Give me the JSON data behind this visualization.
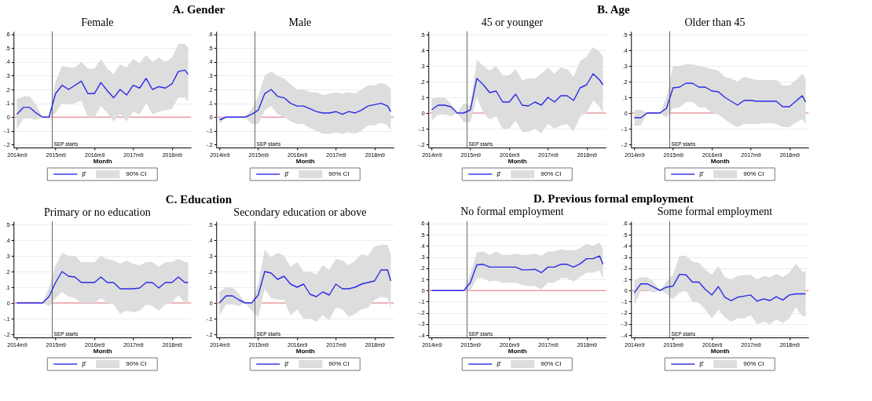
{
  "chart_data": [
    {
      "type": "line",
      "title": "A. Gender",
      "subtitle": "Female",
      "xlabel": "Month",
      "grid": "y",
      "legend": "bottom",
      "marker": "none",
      "x": [
        "2014-09",
        "2014-11",
        "2015-01",
        "2015-03",
        "2015-05",
        "2015-07",
        "2015-09",
        "2015-11",
        "2016-01",
        "2016-03",
        "2016-05",
        "2016-07",
        "2016-09",
        "2016-11",
        "2017-01",
        "2017-03",
        "2017-05",
        "2017-07",
        "2017-09",
        "2017-11",
        "2018-01",
        "2018-03",
        "2018-05",
        "2018-07",
        "2018-09",
        "2018-11",
        "2019-01",
        "2019-02"
      ],
      "xlim": [
        "2014-08",
        "2019-03"
      ],
      "xticks": [
        {
          "value": "2014-09",
          "label": "2014m9"
        },
        {
          "value": "2015-09",
          "label": "2015m9"
        },
        {
          "value": "2016-09",
          "label": "2016m9"
        },
        {
          "value": "2017-09",
          "label": "2017m9"
        },
        {
          "value": "2018-09",
          "label": "2018m9"
        }
      ],
      "ylim": [
        -0.22,
        0.62
      ],
      "yticks": [
        {
          "value": -0.2,
          "label": "-.2"
        },
        {
          "value": -0.1,
          "label": "-.1"
        },
        0,
        {
          "value": 0.1,
          "label": ".1"
        },
        {
          "value": 0.2,
          "label": ".2"
        },
        {
          "value": 0.3,
          "label": ".3"
        },
        {
          "value": 0.4,
          "label": ".4"
        },
        {
          "value": 0.5,
          "label": ".5"
        },
        {
          "value": 0.6,
          "label": ".6"
        }
      ],
      "series": [
        {
          "name": "β̂",
          "color": "#2a2ae8",
          "values": [
            0.02,
            0.07,
            0.07,
            0.03,
            0,
            0,
            0.17,
            0.23,
            0.2,
            0.23,
            0.26,
            0.17,
            0.17,
            0.25,
            0.19,
            0.14,
            0.2,
            0.16,
            0.23,
            0.21,
            0.28,
            0.2,
            0.22,
            0.21,
            0.24,
            0.33,
            0.34,
            0.31
          ],
          "lower": [
            -0.09,
            -0.01,
            -0.01,
            -0.02,
            0,
            0,
            0.03,
            0.1,
            0.09,
            0.1,
            0.12,
            0,
            0,
            0.08,
            0.03,
            -0.03,
            0.02,
            -0.03,
            0.04,
            0.02,
            0.1,
            0.02,
            0.04,
            0.05,
            0.06,
            0.14,
            0.14,
            0.11
          ],
          "upper": [
            0.13,
            0.15,
            0.15,
            0.09,
            0,
            0,
            0.26,
            0.37,
            0.36,
            0.36,
            0.4,
            0.35,
            0.35,
            0.42,
            0.35,
            0.31,
            0.38,
            0.36,
            0.42,
            0.39,
            0.45,
            0.4,
            0.43,
            0.4,
            0.43,
            0.53,
            0.53,
            0.5
          ]
        }
      ],
      "ref_lines": [
        {
          "axis": "y",
          "value": 0,
          "color": "#e8707a"
        },
        {
          "axis": "x",
          "value": "2015-08",
          "label": "SEP starts",
          "color": "#666666"
        }
      ],
      "annotations": [
        "90% CI"
      ]
    },
    {
      "type": "line",
      "subtitle": "Male",
      "xlabel": "Month",
      "grid": "y",
      "legend": "bottom",
      "marker": "none",
      "x": [
        "2014-09",
        "2014-11",
        "2015-01",
        "2015-03",
        "2015-05",
        "2015-07",
        "2015-09",
        "2015-11",
        "2016-01",
        "2016-03",
        "2016-05",
        "2016-07",
        "2016-09",
        "2016-11",
        "2017-01",
        "2017-03",
        "2017-05",
        "2017-07",
        "2017-09",
        "2017-11",
        "2018-01",
        "2018-03",
        "2018-05",
        "2018-07",
        "2018-09",
        "2018-11",
        "2019-01",
        "2019-02"
      ],
      "xlim": [
        "2014-08",
        "2019-03"
      ],
      "xticks": [
        {
          "value": "2014-09",
          "label": "2014m9"
        },
        {
          "value": "2015-09",
          "label": "2015m9"
        },
        {
          "value": "2016-09",
          "label": "2016m9"
        },
        {
          "value": "2017-09",
          "label": "2017m9"
        },
        {
          "value": "2018-09",
          "label": "2018m9"
        }
      ],
      "ylim": [
        -0.22,
        0.62
      ],
      "yticks": [
        {
          "value": -0.2,
          "label": "-.2"
        },
        {
          "value": -0.1,
          "label": "-.1"
        },
        0,
        {
          "value": 0.1,
          "label": ".1"
        },
        {
          "value": 0.2,
          "label": ".2"
        },
        {
          "value": 0.3,
          "label": ".3"
        },
        {
          "value": 0.4,
          "label": ".4"
        },
        {
          "value": 0.5,
          "label": ".5"
        },
        {
          "value": 0.6,
          "label": ".6"
        }
      ],
      "series": [
        {
          "name": "β̂",
          "color": "#2a2ae8",
          "values": [
            -0.02,
            0,
            0,
            0,
            0,
            0.02,
            0.05,
            0.17,
            0.2,
            0.15,
            0.14,
            0.1,
            0.08,
            0.08,
            0.06,
            0.04,
            0.03,
            0.03,
            0.04,
            0.02,
            0.04,
            0.03,
            0.05,
            0.08,
            0.09,
            0.1,
            0.08,
            0.04
          ],
          "lower": [
            -0.05,
            0,
            0,
            0,
            0,
            -0.05,
            -0.05,
            0.05,
            0.08,
            0.02,
            0,
            -0.03,
            -0.05,
            -0.05,
            -0.08,
            -0.1,
            -0.12,
            -0.12,
            -0.11,
            -0.12,
            -0.11,
            -0.12,
            -0.1,
            -0.06,
            -0.06,
            -0.04,
            -0.06,
            -0.1
          ],
          "upper": [
            0,
            0,
            0,
            0,
            0,
            0.06,
            0.15,
            0.3,
            0.33,
            0.3,
            0.28,
            0.24,
            0.2,
            0.2,
            0.18,
            0.18,
            0.16,
            0.17,
            0.18,
            0.17,
            0.18,
            0.17,
            0.2,
            0.23,
            0.23,
            0.25,
            0.23,
            0.2
          ]
        }
      ],
      "ref_lines": [
        {
          "axis": "y",
          "value": 0,
          "color": "#e8707a"
        },
        {
          "axis": "x",
          "value": "2015-08",
          "label": "SEP starts",
          "color": "#666666"
        }
      ],
      "annotations": [
        "90% CI"
      ]
    },
    {
      "type": "line",
      "title": "B. Age",
      "subtitle": "45 or younger",
      "xlabel": "Month",
      "grid": "y",
      "legend": "bottom",
      "marker": "none",
      "x": [
        "2014-09",
        "2014-11",
        "2015-01",
        "2015-03",
        "2015-05",
        "2015-07",
        "2015-09",
        "2015-11",
        "2016-01",
        "2016-03",
        "2016-05",
        "2016-07",
        "2016-09",
        "2016-11",
        "2017-01",
        "2017-03",
        "2017-05",
        "2017-07",
        "2017-09",
        "2017-11",
        "2018-01",
        "2018-03",
        "2018-05",
        "2018-07",
        "2018-09",
        "2018-11",
        "2019-01",
        "2019-02"
      ],
      "xlim": [
        "2014-08",
        "2019-03"
      ],
      "xticks": [
        {
          "value": "2014-09",
          "label": "2014m9"
        },
        {
          "value": "2015-09",
          "label": "2015m9"
        },
        {
          "value": "2016-09",
          "label": "2016m9"
        },
        {
          "value": "2017-09",
          "label": "2017m9"
        },
        {
          "value": "2018-09",
          "label": "2018m9"
        }
      ],
      "ylim": [
        -0.22,
        0.52
      ],
      "yticks": [
        {
          "value": -0.2,
          "label": "-.2"
        },
        {
          "value": -0.1,
          "label": "-.1"
        },
        0,
        {
          "value": 0.1,
          "label": ".1"
        },
        {
          "value": 0.2,
          "label": ".2"
        },
        {
          "value": 0.3,
          "label": ".3"
        },
        {
          "value": 0.4,
          "label": ".4"
        },
        {
          "value": 0.5,
          "label": ".5"
        }
      ],
      "series": [
        {
          "name": "β̂",
          "color": "#2a2ae8",
          "values": [
            0.02,
            0.05,
            0.05,
            0.04,
            0,
            0,
            0.02,
            0.22,
            0.18,
            0.13,
            0.14,
            0.07,
            0.07,
            0.12,
            0.05,
            0.045,
            0.07,
            0.05,
            0.1,
            0.07,
            0.11,
            0.11,
            0.08,
            0.16,
            0.18,
            0.25,
            0.21,
            0.18
          ],
          "lower": [
            -0.05,
            -0.01,
            -0.01,
            -0.02,
            0,
            -0.06,
            -0.06,
            0.1,
            0,
            -0.04,
            -0.02,
            -0.1,
            -0.1,
            -0.05,
            -0.12,
            -0.12,
            -0.1,
            -0.13,
            -0.07,
            -0.1,
            -0.08,
            -0.07,
            -0.12,
            -0.02,
            0,
            0.08,
            0.04,
            0
          ],
          "upper": [
            0.09,
            0.1,
            0.1,
            0.06,
            0,
            0.06,
            0.05,
            0.34,
            0.3,
            0.27,
            0.3,
            0.24,
            0.24,
            0.28,
            0.21,
            0.22,
            0.22,
            0.25,
            0.29,
            0.25,
            0.29,
            0.28,
            0.23,
            0.33,
            0.36,
            0.42,
            0.39,
            0.36
          ]
        }
      ],
      "ref_lines": [
        {
          "axis": "y",
          "value": 0,
          "color": "#e8707a"
        },
        {
          "axis": "x",
          "value": "2015-08",
          "label": "SEP starts",
          "color": "#666666"
        }
      ],
      "annotations": [
        "90% CI"
      ]
    },
    {
      "type": "line",
      "subtitle": "Older than 45",
      "xlabel": "Month",
      "grid": "y",
      "legend": "bottom",
      "marker": "none",
      "x": [
        "2014-09",
        "2014-11",
        "2015-01",
        "2015-03",
        "2015-05",
        "2015-07",
        "2015-09",
        "2015-11",
        "2016-01",
        "2016-03",
        "2016-05",
        "2016-07",
        "2016-09",
        "2016-11",
        "2017-01",
        "2017-03",
        "2017-05",
        "2017-07",
        "2017-09",
        "2017-11",
        "2018-01",
        "2018-03",
        "2018-05",
        "2018-07",
        "2018-09",
        "2018-11",
        "2019-01",
        "2019-02"
      ],
      "xlim": [
        "2014-08",
        "2019-03"
      ],
      "xticks": [
        {
          "value": "2014-09",
          "label": "2014m9"
        },
        {
          "value": "2015-09",
          "label": "2015m9"
        },
        {
          "value": "2016-09",
          "label": "2016m9"
        },
        {
          "value": "2017-09",
          "label": "2017m9"
        },
        {
          "value": "2018-09",
          "label": "2018m9"
        }
      ],
      "ylim": [
        -0.22,
        0.52
      ],
      "yticks": [
        {
          "value": -0.2,
          "label": "-.2"
        },
        {
          "value": -0.1,
          "label": "-.1"
        },
        0,
        {
          "value": 0.1,
          "label": ".1"
        },
        {
          "value": 0.2,
          "label": ".2"
        },
        {
          "value": 0.3,
          "label": ".3"
        },
        {
          "value": 0.4,
          "label": ".4"
        },
        {
          "value": 0.5,
          "label": ".5"
        }
      ],
      "series": [
        {
          "name": "β̂",
          "color": "#2a2ae8",
          "values": [
            -0.03,
            -0.03,
            0,
            0,
            0,
            0.03,
            0.16,
            0.165,
            0.19,
            0.19,
            0.165,
            0.165,
            0.14,
            0.135,
            0.1,
            0.075,
            0.05,
            0.08,
            0.08,
            0.075,
            0.075,
            0.075,
            0.075,
            0.04,
            0.04,
            0.075,
            0.11,
            0.07
          ],
          "lower": [
            -0.08,
            -0.08,
            0,
            0,
            0,
            -0.03,
            0.03,
            0.035,
            0.07,
            0.07,
            0.035,
            0.035,
            0,
            -0.01,
            -0.04,
            -0.07,
            -0.09,
            -0.07,
            -0.07,
            -0.07,
            -0.065,
            -0.065,
            -0.07,
            -0.09,
            -0.09,
            -0.06,
            -0.04,
            -0.07
          ],
          "upper": [
            0.02,
            0.02,
            0,
            0,
            0,
            0.1,
            0.3,
            0.3,
            0.31,
            0.31,
            0.3,
            0.29,
            0.28,
            0.27,
            0.23,
            0.22,
            0.2,
            0.23,
            0.22,
            0.21,
            0.21,
            0.21,
            0.21,
            0.175,
            0.175,
            0.21,
            0.25,
            0.22
          ]
        }
      ],
      "ref_lines": [
        {
          "axis": "y",
          "value": 0,
          "color": "#e8707a"
        },
        {
          "axis": "x",
          "value": "2015-08",
          "label": "SEP starts",
          "color": "#666666"
        }
      ],
      "annotations": [
        "90% CI"
      ]
    },
    {
      "type": "line",
      "title": "C. Education",
      "subtitle": "Primary or no education",
      "xlabel": "Month",
      "grid": "y",
      "legend": "bottom",
      "marker": "none",
      "x": [
        "2014-09",
        "2014-11",
        "2015-01",
        "2015-03",
        "2015-05",
        "2015-07",
        "2015-09",
        "2015-11",
        "2016-01",
        "2016-03",
        "2016-05",
        "2016-07",
        "2016-09",
        "2016-11",
        "2017-01",
        "2017-03",
        "2017-05",
        "2017-07",
        "2017-09",
        "2017-11",
        "2018-01",
        "2018-03",
        "2018-05",
        "2018-07",
        "2018-09",
        "2018-11",
        "2019-01",
        "2019-02"
      ],
      "xlim": [
        "2014-08",
        "2019-03"
      ],
      "xticks": [
        {
          "value": "2014-09",
          "label": "2014m9"
        },
        {
          "value": "2015-09",
          "label": "2015m9"
        },
        {
          "value": "2016-09",
          "label": "2016m9"
        },
        {
          "value": "2017-09",
          "label": "2017m9"
        },
        {
          "value": "2018-09",
          "label": "2018m9"
        }
      ],
      "ylim": [
        -0.22,
        0.52
      ],
      "yticks": [
        {
          "value": -0.2,
          "label": "-.2"
        },
        {
          "value": -0.1,
          "label": "-.1"
        },
        0,
        {
          "value": 0.1,
          "label": ".1"
        },
        {
          "value": 0.2,
          "label": ".2"
        },
        {
          "value": 0.3,
          "label": ".3"
        },
        {
          "value": 0.4,
          "label": ".4"
        },
        {
          "value": 0.5,
          "label": ".5"
        }
      ],
      "series": [
        {
          "name": "β̂",
          "color": "#2a2ae8",
          "values": [
            0,
            0,
            0,
            0,
            0,
            0.04,
            0.13,
            0.2,
            0.17,
            0.165,
            0.13,
            0.13,
            0.13,
            0.165,
            0.13,
            0.13,
            0.09,
            0.09,
            0.09,
            0.095,
            0.13,
            0.13,
            0.095,
            0.13,
            0.13,
            0.165,
            0.13,
            0.13
          ],
          "lower": [
            0,
            0,
            0,
            0,
            0,
            -0.02,
            0.03,
            0.07,
            0.04,
            0.03,
            0,
            0,
            0,
            0.03,
            0,
            -0.01,
            -0.07,
            -0.05,
            -0.06,
            -0.05,
            -0.01,
            -0.02,
            -0.05,
            -0.01,
            0,
            0.05,
            0,
            0
          ],
          "upper": [
            0,
            0,
            0,
            0,
            0,
            0.1,
            0.24,
            0.32,
            0.3,
            0.3,
            0.26,
            0.26,
            0.26,
            0.3,
            0.28,
            0.27,
            0.25,
            0.27,
            0.25,
            0.24,
            0.26,
            0.26,
            0.23,
            0.26,
            0.26,
            0.28,
            0.26,
            0.26
          ]
        }
      ],
      "ref_lines": [
        {
          "axis": "y",
          "value": 0,
          "color": "#e8707a"
        },
        {
          "axis": "x",
          "value": "2015-08",
          "label": "SEP starts",
          "color": "#666666"
        }
      ],
      "annotations": [
        "90% CI"
      ]
    },
    {
      "type": "line",
      "subtitle": "Secondary education or above",
      "xlabel": "Month",
      "grid": "y",
      "legend": "bottom",
      "marker": "none",
      "x": [
        "2014-09",
        "2014-11",
        "2015-01",
        "2015-03",
        "2015-05",
        "2015-07",
        "2015-09",
        "2015-11",
        "2016-01",
        "2016-03",
        "2016-05",
        "2016-07",
        "2016-09",
        "2016-11",
        "2017-01",
        "2017-03",
        "2017-05",
        "2017-07",
        "2017-09",
        "2017-11",
        "2018-01",
        "2018-03",
        "2018-05",
        "2018-07",
        "2018-09",
        "2018-11",
        "2019-01",
        "2019-02"
      ],
      "xlim": [
        "2014-08",
        "2019-03"
      ],
      "xticks": [
        {
          "value": "2014-09",
          "label": "2014m9"
        },
        {
          "value": "2015-09",
          "label": "2015m9"
        },
        {
          "value": "2016-09",
          "label": "2016m9"
        },
        {
          "value": "2017-09",
          "label": "2017m9"
        },
        {
          "value": "2018-09",
          "label": "2018m9"
        }
      ],
      "ylim": [
        -0.22,
        0.52
      ],
      "yticks": [
        {
          "value": -0.2,
          "label": "-.2"
        },
        {
          "value": -0.1,
          "label": "-.1"
        },
        0,
        {
          "value": 0.1,
          "label": ".1"
        },
        {
          "value": 0.2,
          "label": ".2"
        },
        {
          "value": 0.3,
          "label": ".3"
        },
        {
          "value": 0.4,
          "label": ".4"
        },
        {
          "value": 0.5,
          "label": ".5"
        }
      ],
      "series": [
        {
          "name": "β̂",
          "color": "#2a2ae8",
          "values": [
            0,
            0.045,
            0.045,
            0.02,
            0,
            0,
            0.05,
            0.2,
            0.19,
            0.15,
            0.17,
            0.12,
            0.1,
            0.12,
            0.055,
            0.04,
            0.07,
            0.05,
            0.12,
            0.09,
            0.09,
            0.1,
            0.12,
            0.13,
            0.14,
            0.21,
            0.21,
            0.14
          ],
          "lower": [
            -0.08,
            -0.01,
            -0.01,
            -0.02,
            0,
            -0.05,
            -0.09,
            0.09,
            0.03,
            0.02,
            0.02,
            -0.08,
            -0.04,
            -0.1,
            -0.1,
            -0.12,
            -0.08,
            -0.11,
            -0.03,
            -0.04,
            -0.09,
            -0.07,
            -0.04,
            -0.03,
            0.02,
            0.04,
            0.03,
            -0.04
          ],
          "upper": [
            0.07,
            0.1,
            0.1,
            0.06,
            0,
            0,
            0.12,
            0.34,
            0.29,
            0.32,
            0.3,
            0.23,
            0.26,
            0.2,
            0.2,
            0.18,
            0.24,
            0.21,
            0.28,
            0.27,
            0.24,
            0.27,
            0.31,
            0.3,
            0.36,
            0.37,
            0.37,
            0.31
          ]
        }
      ],
      "ref_lines": [
        {
          "axis": "y",
          "value": 0,
          "color": "#e8707a"
        },
        {
          "axis": "x",
          "value": "2015-08",
          "label": "SEP starts",
          "color": "#666666"
        }
      ],
      "annotations": [
        "90% CI"
      ]
    },
    {
      "type": "line",
      "title": "D. Previous formal employment",
      "subtitle": "No formal employment",
      "xlabel": "Month",
      "grid": "y",
      "legend": "bottom",
      "marker": "none",
      "x": [
        "2014-09",
        "2014-11",
        "2015-01",
        "2015-03",
        "2015-05",
        "2015-07",
        "2015-09",
        "2015-11",
        "2016-01",
        "2016-03",
        "2016-05",
        "2016-07",
        "2016-09",
        "2016-11",
        "2017-01",
        "2017-03",
        "2017-05",
        "2017-07",
        "2017-09",
        "2017-11",
        "2018-01",
        "2018-03",
        "2018-05",
        "2018-07",
        "2018-09",
        "2018-11",
        "2019-01",
        "2019-02"
      ],
      "xlim": [
        "2014-08",
        "2019-03"
      ],
      "xticks": [
        {
          "value": "2014-09",
          "label": "2014m9"
        },
        {
          "value": "2015-09",
          "label": "2015m9"
        },
        {
          "value": "2016-09",
          "label": "2016m9"
        },
        {
          "value": "2017-09",
          "label": "2017m9"
        },
        {
          "value": "2018-09",
          "label": "2018m9"
        }
      ],
      "ylim": [
        -0.42,
        0.62
      ],
      "yticks": [
        {
          "value": -0.4,
          "label": "-.4"
        },
        {
          "value": -0.3,
          "label": "-.3"
        },
        {
          "value": -0.2,
          "label": "-.2"
        },
        {
          "value": -0.1,
          "label": "-.1"
        },
        0,
        {
          "value": 0.1,
          "label": ".1"
        },
        {
          "value": 0.2,
          "label": ".2"
        },
        {
          "value": 0.3,
          "label": ".3"
        },
        {
          "value": 0.4,
          "label": ".4"
        },
        {
          "value": 0.5,
          "label": ".5"
        },
        {
          "value": 0.6,
          "label": ".6"
        }
      ],
      "series": [
        {
          "name": "β̂",
          "color": "#2a2ae8",
          "values": [
            0,
            0,
            0,
            0,
            0,
            0,
            0.07,
            0.23,
            0.235,
            0.21,
            0.21,
            0.21,
            0.21,
            0.21,
            0.185,
            0.185,
            0.19,
            0.16,
            0.21,
            0.21,
            0.235,
            0.235,
            0.21,
            0.24,
            0.285,
            0.285,
            0.31,
            0.235
          ],
          "lower": [
            0,
            0,
            0,
            0,
            0,
            0,
            0,
            0.11,
            0.11,
            0.08,
            0.09,
            0.07,
            0.07,
            0.07,
            0.05,
            0.04,
            0.04,
            0.01,
            0.07,
            0.07,
            0.11,
            0.11,
            0.08,
            0.12,
            0.16,
            0.16,
            0.18,
            0.1
          ],
          "upper": [
            0,
            0,
            0,
            0,
            0,
            0,
            0.15,
            0.34,
            0.35,
            0.32,
            0.35,
            0.32,
            0.32,
            0.33,
            0.32,
            0.32,
            0.33,
            0.31,
            0.35,
            0.35,
            0.37,
            0.36,
            0.36,
            0.38,
            0.42,
            0.4,
            0.43,
            0.37
          ]
        }
      ],
      "ref_lines": [
        {
          "axis": "y",
          "value": 0,
          "color": "#e8707a"
        },
        {
          "axis": "x",
          "value": "2015-08",
          "label": "SEP starts",
          "color": "#666666"
        }
      ],
      "annotations": [
        "90% CI"
      ]
    },
    {
      "type": "line",
      "subtitle": "Some formal employment",
      "xlabel": "Month",
      "grid": "y",
      "legend": "bottom",
      "marker": "none",
      "x": [
        "2014-09",
        "2014-11",
        "2015-01",
        "2015-03",
        "2015-05",
        "2015-07",
        "2015-09",
        "2015-11",
        "2016-01",
        "2016-03",
        "2016-05",
        "2016-07",
        "2016-09",
        "2016-11",
        "2017-01",
        "2017-03",
        "2017-05",
        "2017-07",
        "2017-09",
        "2017-11",
        "2018-01",
        "2018-03",
        "2018-05",
        "2018-07",
        "2018-09",
        "2018-11",
        "2019-01",
        "2019-02"
      ],
      "xlim": [
        "2014-08",
        "2019-03"
      ],
      "xticks": [
        {
          "value": "2014-09",
          "label": "2014m9"
        },
        {
          "value": "2015-09",
          "label": "2015m9"
        },
        {
          "value": "2016-09",
          "label": "2016m9"
        },
        {
          "value": "2017-09",
          "label": "2017m9"
        },
        {
          "value": "2018-09",
          "label": "2018m9"
        }
      ],
      "ylim": [
        -0.42,
        0.62
      ],
      "yticks": [
        {
          "value": -0.4,
          "label": "-.4"
        },
        {
          "value": -0.3,
          "label": "-.3"
        },
        {
          "value": -0.2,
          "label": "-.2"
        },
        {
          "value": -0.1,
          "label": "-.1"
        },
        0,
        {
          "value": 0.1,
          "label": ".1"
        },
        {
          "value": 0.2,
          "label": ".2"
        },
        {
          "value": 0.3,
          "label": ".3"
        },
        {
          "value": 0.4,
          "label": ".4"
        },
        {
          "value": 0.5,
          "label": ".5"
        },
        {
          "value": 0.6,
          "label": ".6"
        }
      ],
      "series": [
        {
          "name": "β̂",
          "color": "#2a2ae8",
          "values": [
            -0.02,
            0.06,
            0.06,
            0.03,
            0,
            0.03,
            0.04,
            0.145,
            0.14,
            0.075,
            0.075,
            0.01,
            -0.04,
            0.035,
            -0.06,
            -0.09,
            -0.06,
            -0.05,
            -0.04,
            -0.095,
            -0.075,
            -0.09,
            -0.055,
            -0.085,
            -0.04,
            -0.03,
            -0.03,
            -0.03
          ],
          "lower": [
            -0.13,
            0,
            0,
            -0.02,
            0,
            -0.03,
            -0.08,
            -0.02,
            0,
            -0.1,
            -0.11,
            -0.17,
            -0.25,
            -0.17,
            -0.24,
            -0.28,
            -0.25,
            -0.25,
            -0.22,
            -0.3,
            -0.28,
            -0.3,
            -0.26,
            -0.29,
            -0.25,
            -0.15,
            -0.23,
            -0.23
          ],
          "upper": [
            0.09,
            0.12,
            0.12,
            0.08,
            0,
            0.08,
            0.14,
            0.31,
            0.31,
            0.26,
            0.25,
            0.19,
            0.14,
            0.22,
            0.12,
            0.1,
            0.13,
            0.14,
            0.14,
            0.1,
            0.13,
            0.12,
            0.15,
            0.12,
            0.16,
            0.24,
            0.17,
            0.17
          ]
        }
      ],
      "ref_lines": [
        {
          "axis": "y",
          "value": 0,
          "color": "#e8707a"
        },
        {
          "axis": "x",
          "value": "2015-08",
          "label": "SEP starts",
          "color": "#666666"
        }
      ],
      "annotations": [
        "90% CI"
      ]
    }
  ]
}
